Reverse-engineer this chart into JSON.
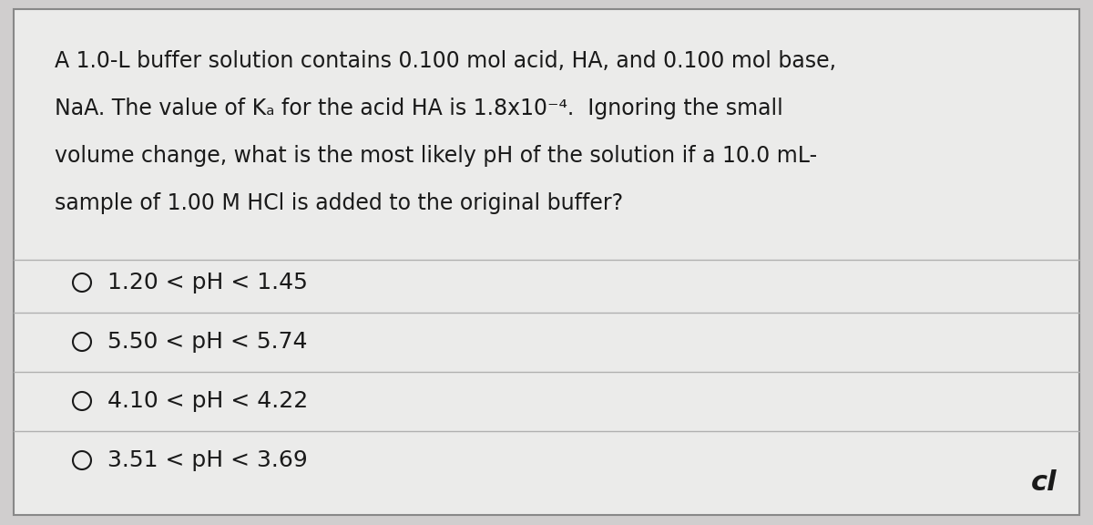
{
  "background_color": "#d0cece",
  "box_color": "#ebebea",
  "box_border_color": "#888888",
  "question_lines": [
    "A 1.0-L buffer solution contains 0.100 mol acid, HA, and 0.100 mol base,",
    "NaA. The value of Kₐ for the acid HA is 1.8x10⁻⁴.  Ignoring the small",
    "volume change, what is the most likely pH of the solution if a 10.0 mL-",
    "sample of 1.00 M HCl is added to the original buffer?"
  ],
  "choices": [
    "1.20 < pH < 1.45",
    "5.50 < pH < 5.74",
    "4.10 < pH < 4.22",
    "3.51 < pH < 3.69"
  ],
  "text_color": "#1a1a1a",
  "divider_color": "#b0b0b0",
  "font_size_question": 17,
  "font_size_choices": 18,
  "watermark": "cl"
}
